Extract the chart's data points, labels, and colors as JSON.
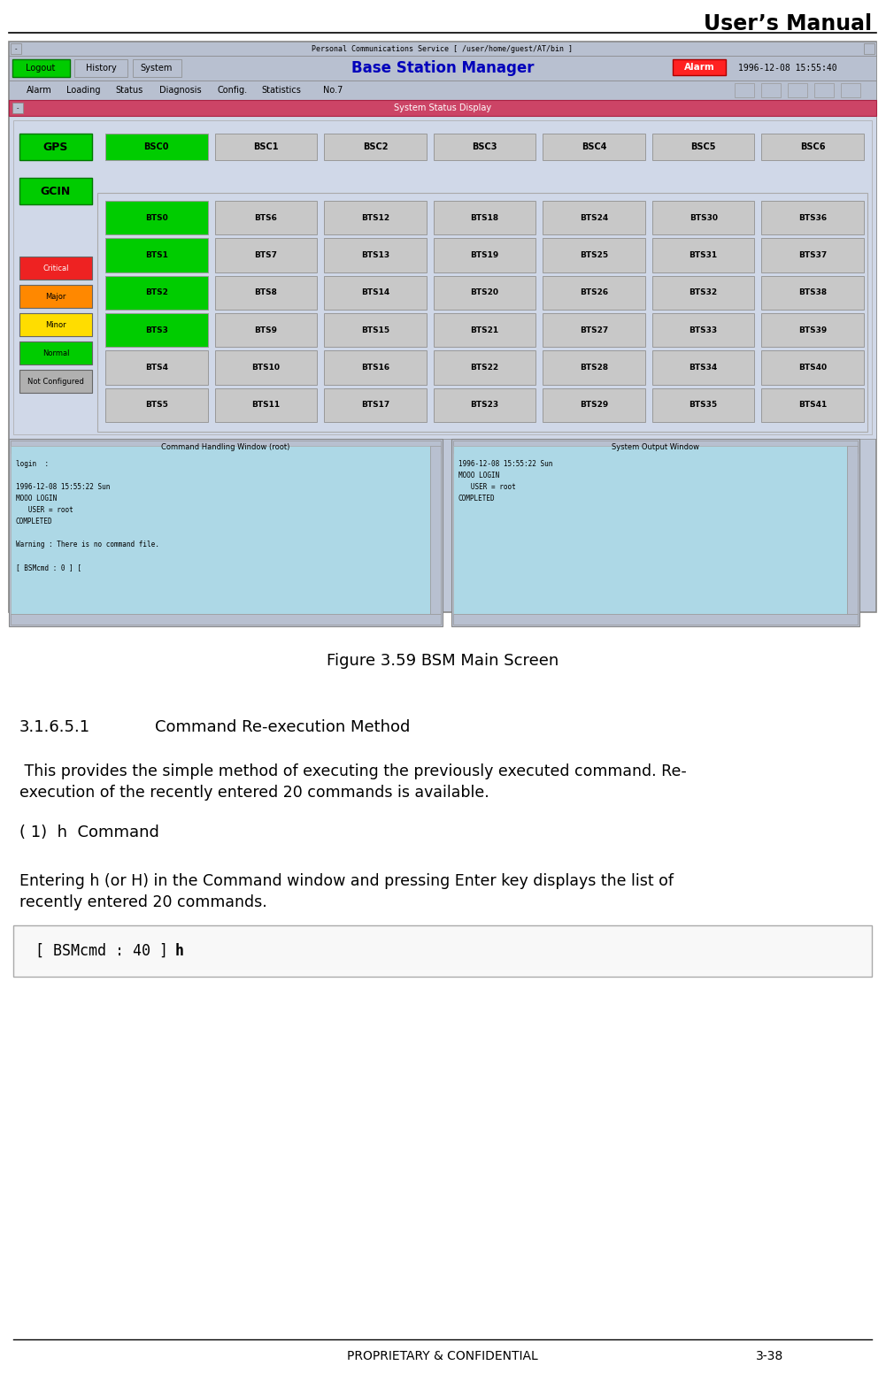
{
  "title": "User’s Manual",
  "figure_caption": "Figure 3.59 BSM Main Screen",
  "section_number": "3.1.6.5.1",
  "section_title": "Command Re-execution Method",
  "body_text1a": " This provides the simple method of executing the previously executed command. Re-",
  "body_text1b": "execution of the recently entered 20 commands is available.",
  "body_text2": "( 1)  h  Command",
  "body_text3a": "Entering h (or H) in the Command window and pressing Enter key displays the list of",
  "body_text3b": "recently entered 20 commands.",
  "footer_left": "PROPRIETARY & CONFIDENTIAL",
  "footer_right": "3-38",
  "bg_color": "#ffffff",
  "screen_frame_bg": "#c0c8d8",
  "screen_content_bg": "#d0d8e8",
  "terminal_bg": "#add8e6",
  "ssd_bar_color": "#cc4466",
  "green_btn": "#00cc00",
  "red_alarm": "#ff2222",
  "critical_color": "#ee2222",
  "major_color": "#ff8800",
  "minor_color": "#ffdd00",
  "normal_color": "#00cc00",
  "notconf_color": "#b0b0b0",
  "bsc_gray": "#c8c8c8",
  "bts_gray": "#c8c8c8",
  "header_blue": "#0000bb",
  "cmd_box_bg": "#f8f8f8"
}
